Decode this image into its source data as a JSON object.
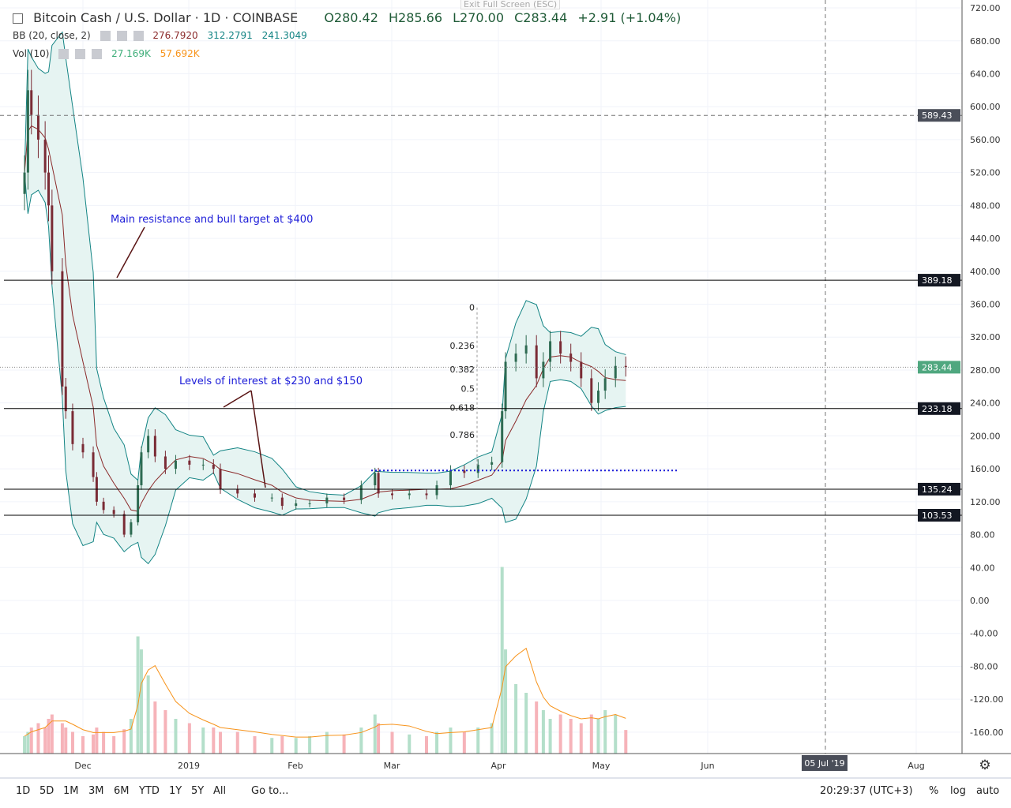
{
  "header": {
    "symbol": "Bitcoin Cash / U.S. Dollar · 1D · COINBASE",
    "open": "O280.42",
    "high": "H285.66",
    "low": "L270.00",
    "close": "C283.44",
    "change": "+2.91 (+1.04%)",
    "exit_fullscreen": "Exit Full Screen (ESC)"
  },
  "indicators": {
    "bb_label": "BB (20, close, 2)",
    "bb_basis": "276.7920",
    "bb_upper": "312.2791",
    "bb_lower": "241.3049",
    "vol_label": "Vol (10)",
    "vol_value": "27.169K",
    "vol_ma": "57.692K"
  },
  "toolbar": {
    "ranges": [
      "1D",
      "5D",
      "1M",
      "3M",
      "6M",
      "YTD",
      "1Y",
      "5Y",
      "All"
    ],
    "goto": "Go to...",
    "clock": "20:29:37 (UTC+3)",
    "percent": "%",
    "log": "log",
    "auto": "auto"
  },
  "colors": {
    "up": "#2e6b52",
    "down": "#7a2b35",
    "bb_band": "#138484",
    "bb_fill": "#e6f4f2",
    "bb_basis": "#8b2a2a",
    "vol_up": "#b4dfca",
    "vol_down": "#f6b3b9",
    "vol_ma": "#f7931a",
    "annotation": "#1c1cd8"
  },
  "chart_data": {
    "type": "candlestick",
    "title": "Bitcoin Cash / U.S. Dollar",
    "y_ticks": [
      720,
      680,
      640,
      600,
      560,
      520,
      480,
      440,
      400,
      360,
      320,
      280,
      240,
      200,
      160,
      120,
      80,
      40,
      0,
      -40,
      -80,
      -120,
      -160
    ],
    "x_ticks": [
      "Dec",
      "2019",
      "Feb",
      "Mar",
      "Apr",
      "May",
      "Jun",
      "Aug"
    ],
    "crosshair_date": "05 Jul '19",
    "price_labels": [
      {
        "value": 589.43,
        "label": "589.43",
        "style": "crosshair"
      },
      {
        "value": 389.18,
        "label": "389.18"
      },
      {
        "value": 283.44,
        "label": "283.44",
        "style": "last"
      },
      {
        "value": 233.18,
        "label": "233.18"
      },
      {
        "value": 135.24,
        "label": "135.24"
      },
      {
        "value": 103.53,
        "label": "103.53"
      }
    ],
    "closes": [
      [
        "2018-11-14",
        520
      ],
      [
        "2018-11-15",
        620
      ],
      [
        "2018-11-16",
        590
      ],
      [
        "2018-11-18",
        560
      ],
      [
        "2018-11-20",
        520
      ],
      [
        "2018-11-21",
        480
      ],
      [
        "2018-11-22",
        400
      ],
      [
        "2018-11-25",
        260
      ],
      [
        "2018-11-26",
        230
      ],
      [
        "2018-11-28",
        190
      ],
      [
        "2018-12-01",
        180
      ],
      [
        "2018-12-04",
        150
      ],
      [
        "2018-12-05",
        120
      ],
      [
        "2018-12-07",
        110
      ],
      [
        "2018-12-10",
        105
      ],
      [
        "2018-12-13",
        80
      ],
      [
        "2018-12-15",
        95
      ],
      [
        "2018-12-17",
        140
      ],
      [
        "2018-12-18",
        180
      ],
      [
        "2018-12-20",
        200
      ],
      [
        "2018-12-22",
        175
      ],
      [
        "2018-12-25",
        160
      ],
      [
        "2018-12-28",
        170
      ],
      [
        "2019-01-01",
        165
      ],
      [
        "2019-01-05",
        165
      ],
      [
        "2019-01-08",
        160
      ],
      [
        "2019-01-10",
        135
      ],
      [
        "2019-01-15",
        130
      ],
      [
        "2019-01-20",
        125
      ],
      [
        "2019-01-25",
        125
      ],
      [
        "2019-01-28",
        115
      ],
      [
        "2019-02-01",
        118
      ],
      [
        "2019-02-05",
        118
      ],
      [
        "2019-02-10",
        125
      ],
      [
        "2019-02-15",
        122
      ],
      [
        "2019-02-20",
        140
      ],
      [
        "2019-02-24",
        155
      ],
      [
        "2019-02-25",
        130
      ],
      [
        "2019-03-01",
        128
      ],
      [
        "2019-03-06",
        130
      ],
      [
        "2019-03-11",
        128
      ],
      [
        "2019-03-14",
        140
      ],
      [
        "2019-03-18",
        158
      ],
      [
        "2019-03-22",
        155
      ],
      [
        "2019-03-26",
        165
      ],
      [
        "2019-03-30",
        168
      ],
      [
        "2019-04-02",
        230
      ],
      [
        "2019-04-03",
        290
      ],
      [
        "2019-04-06",
        300
      ],
      [
        "2019-04-09",
        310
      ],
      [
        "2019-04-12",
        270
      ],
      [
        "2019-04-14",
        290
      ],
      [
        "2019-04-16",
        315
      ],
      [
        "2019-04-19",
        300
      ],
      [
        "2019-04-22",
        290
      ],
      [
        "2019-04-25",
        270
      ],
      [
        "2019-04-28",
        240
      ],
      [
        "2019-04-30",
        255
      ],
      [
        "2019-05-02",
        270
      ],
      [
        "2019-05-05",
        285
      ],
      [
        "2019-05-08",
        283.44
      ]
    ],
    "volumes_k": [
      20,
      25,
      30,
      35,
      30,
      40,
      45,
      35,
      30,
      25,
      20,
      22,
      30,
      25,
      20,
      28,
      40,
      135,
      120,
      90,
      60,
      50,
      40,
      35,
      30,
      30,
      25,
      25,
      20,
      18,
      20,
      18,
      20,
      25,
      22,
      30,
      45,
      35,
      25,
      22,
      20,
      25,
      30,
      25,
      30,
      35,
      215,
      120,
      80,
      70,
      60,
      50,
      40,
      45,
      40,
      35,
      45,
      40,
      50,
      45,
      27.169
    ],
    "horizontal_levels": [
      389.18,
      233.18,
      135.24,
      103.53
    ],
    "support_dotted": 158,
    "fibonacci": {
      "levels": [
        "0",
        "0.236",
        "0.382",
        "0.5",
        "0.618",
        "0.786"
      ],
      "high": 356,
      "low": 159
    },
    "annotations": [
      "Main resistance and bull target at $400",
      "Levels of interest at $230 and $150"
    ]
  }
}
